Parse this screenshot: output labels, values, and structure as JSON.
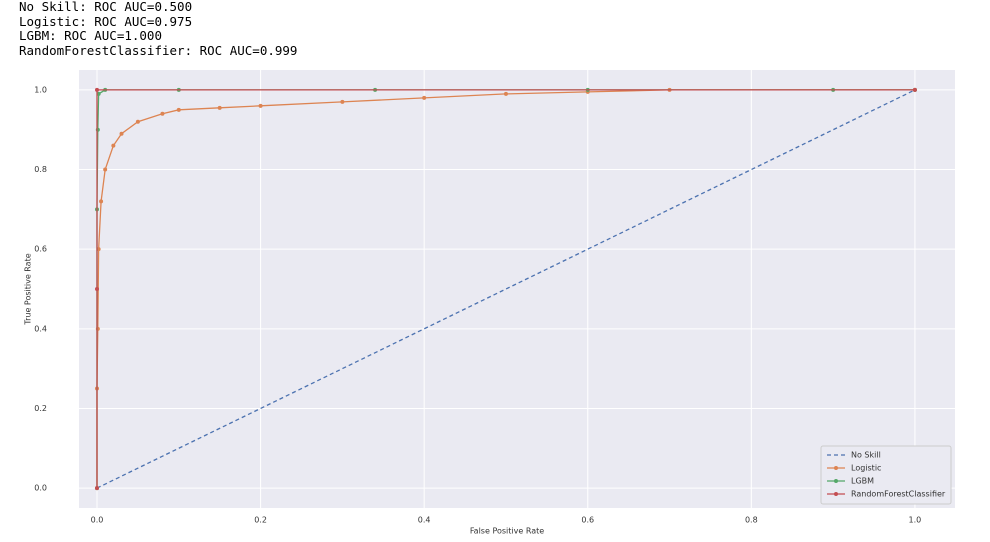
{
  "console": {
    "lines": [
      "No Skill: ROC AUC=0.500",
      "Logistic: ROC AUC=0.975",
      "LGBM: ROC AUC=1.000",
      "RandomForestClassifier: ROC AUC=0.999"
    ]
  },
  "chart_data": {
    "type": "line",
    "xlabel": "False Positive Rate",
    "ylabel": "True Positive Rate",
    "xlim": [
      -0.022,
      1.049
    ],
    "ylim": [
      -0.05,
      1.05
    ],
    "xticks": [
      {
        "value": 0,
        "label": "0.0"
      },
      0.2,
      0.4,
      0.6,
      0.8,
      {
        "value": 1,
        "label": "1.0"
      }
    ],
    "yticks": [
      {
        "value": 0,
        "label": "0.0"
      },
      0.2,
      0.4,
      0.6,
      0.8,
      {
        "value": 1,
        "label": "1.0"
      }
    ],
    "grid": true,
    "legend": "lower right",
    "series": [
      {
        "name": "No Skill",
        "color": "#4c72b0",
        "dashed": true,
        "markers": false,
        "x": [
          0,
          1
        ],
        "values": [
          0,
          1
        ]
      },
      {
        "name": "Logistic",
        "color": "#dd8452",
        "dashed": false,
        "markers": true,
        "x": [
          0,
          0,
          0.001,
          0.002,
          0.005,
          0.01,
          0.02,
          0.03,
          0.05,
          0.08,
          0.1,
          0.15,
          0.2,
          0.3,
          0.4,
          0.5,
          0.6,
          0.7,
          1.0
        ],
        "values": [
          0,
          0.25,
          0.4,
          0.6,
          0.72,
          0.8,
          0.86,
          0.89,
          0.92,
          0.94,
          0.95,
          0.955,
          0.96,
          0.97,
          0.98,
          0.99,
          0.995,
          1.0,
          1.0
        ]
      },
      {
        "name": "LGBM",
        "color": "#55a868",
        "dashed": false,
        "markers": true,
        "x": [
          0,
          0,
          0.001,
          0.002,
          0.01,
          0.1,
          0.34,
          0.6,
          0.9,
          1.0
        ],
        "values": [
          0,
          0.7,
          0.9,
          0.99,
          1.0,
          1.0,
          1.0,
          1.0,
          1.0,
          1.0
        ]
      },
      {
        "name": "RandomForestClassifier",
        "color": "#c44e52",
        "dashed": false,
        "markers": true,
        "x": [
          0,
          0,
          0,
          1.0
        ],
        "values": [
          0,
          0.5,
          1.0,
          1.0
        ]
      }
    ]
  }
}
